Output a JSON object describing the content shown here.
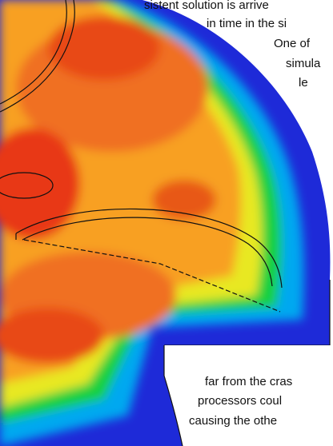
{
  "text": {
    "top": [
      "sistent solution is arrive",
      "in time in the si",
      "One of",
      "simula",
      "le"
    ],
    "bottom": [
      "far from the cras",
      "processors coul",
      "causing the othe"
    ]
  }
}
